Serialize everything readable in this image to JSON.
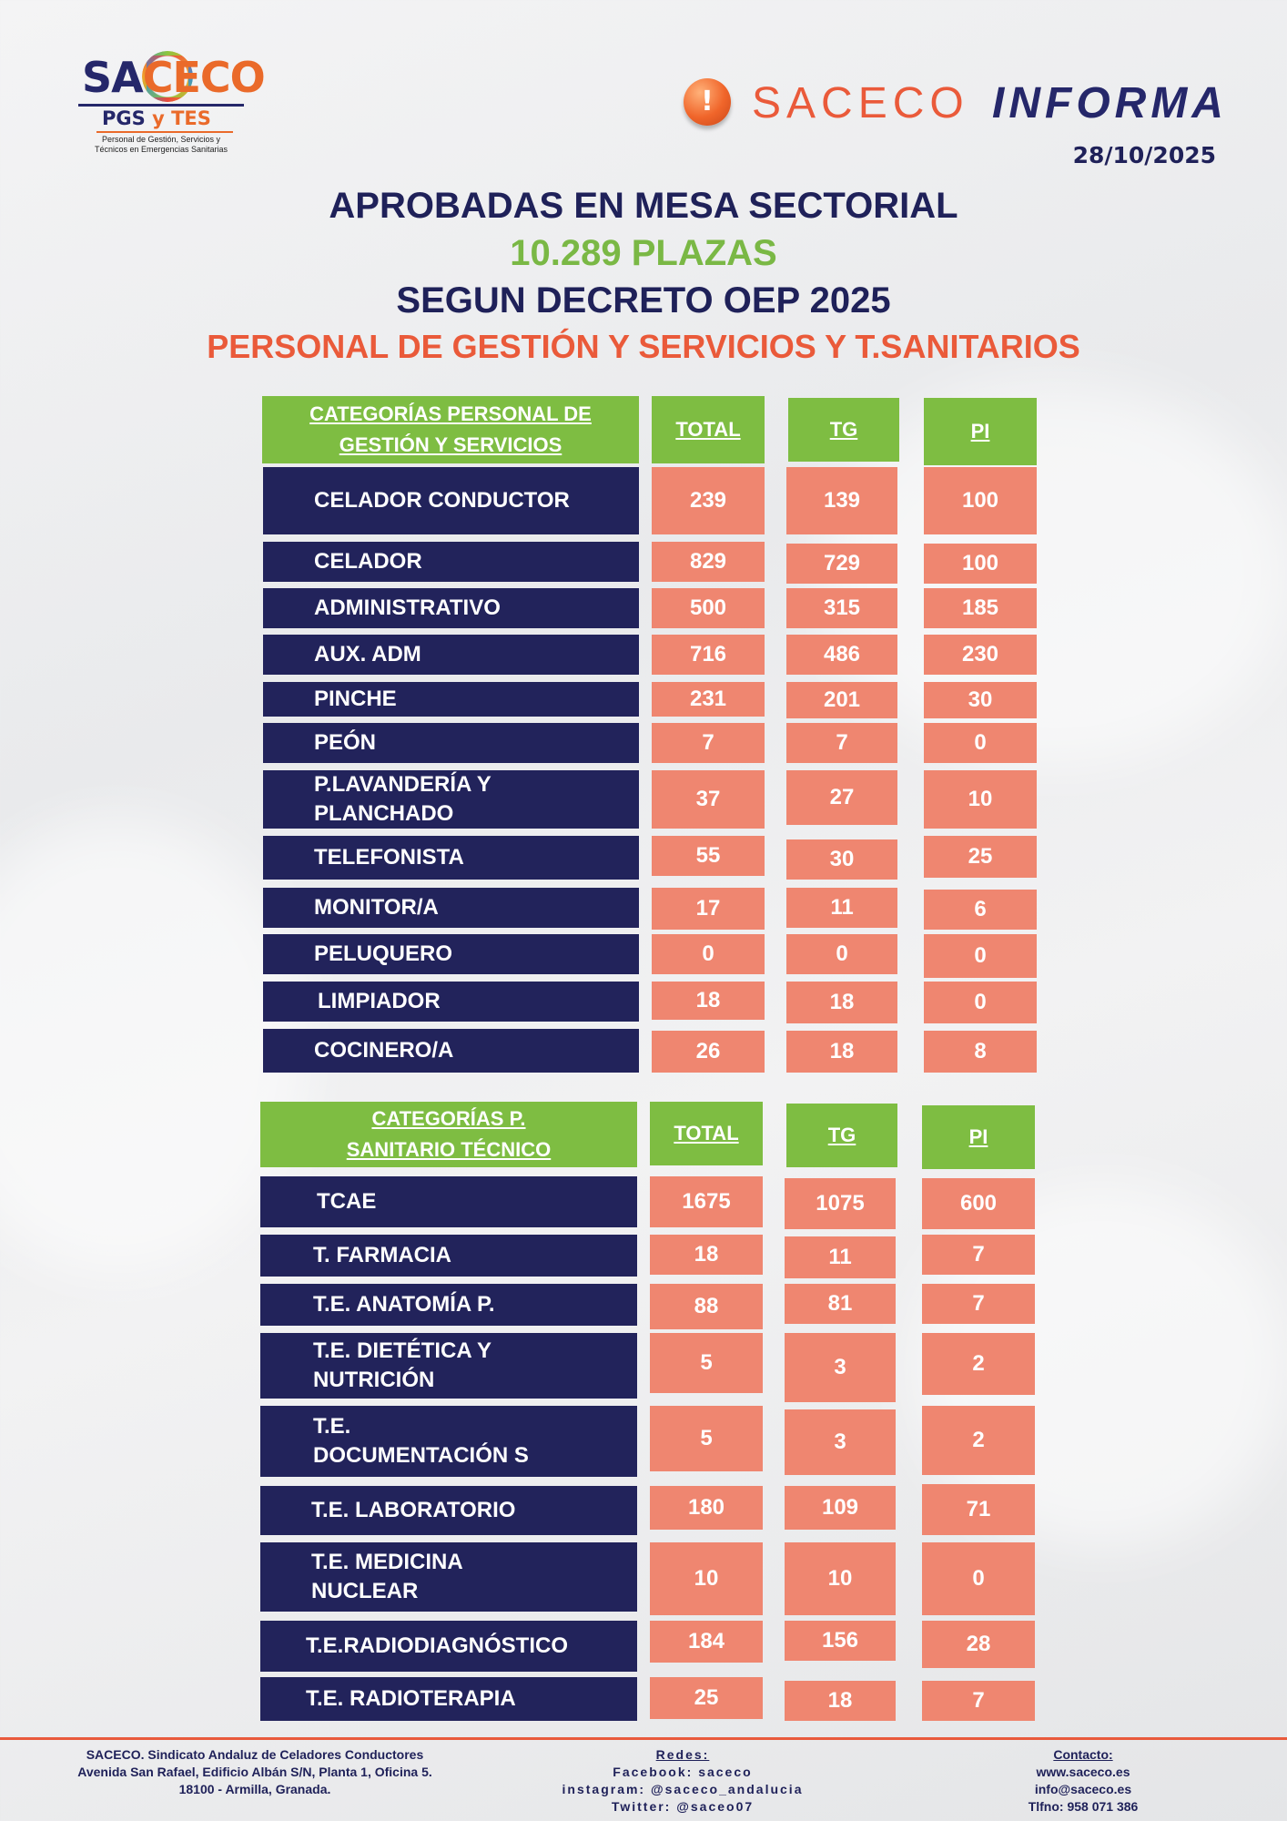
{
  "logo": {
    "main_a": "SA",
    "main_b": "CECO",
    "sub_a": "PGS",
    "sub_b": "y TES",
    "caption_1": "Personal de Gestión, Servicios y",
    "caption_2": "Técnicos en Emergencias Sanitarias"
  },
  "header": {
    "alert_symbol": "!",
    "brand": "SACECO",
    "brand_b": "INFORMA",
    "date": "28/10/2025"
  },
  "titles": {
    "line1": "APROBADAS EN MESA SECTORIAL",
    "line2": "10.289 PLAZAS",
    "line3": "SEGUN DECRETO OEP 2025",
    "line4": "PERSONAL DE GESTIÓN Y SERVICIOS Y T.SANITARIOS"
  },
  "table1": {
    "header": {
      "category_line1": "CATEGORÍAS PERSONAL DE",
      "category_line2": "GESTIÓN Y SERVICIOS",
      "total": "TOTAL",
      "tg": "TG",
      "pi": "PI"
    },
    "rows": [
      {
        "name1": "CELADOR CONDUCTOR",
        "name2": "",
        "total": "239",
        "tg": "139",
        "pi": "100"
      },
      {
        "name1": "CELADOR",
        "name2": "",
        "total": "829",
        "tg": "729",
        "pi": "100"
      },
      {
        "name1": "ADMINISTRATIVO",
        "name2": "",
        "total": "500",
        "tg": "315",
        "pi": "185"
      },
      {
        "name1": "AUX. ADM",
        "name2": "",
        "total": "716",
        "tg": "486",
        "pi": "230"
      },
      {
        "name1": "PINCHE",
        "name2": "",
        "total": "231",
        "tg": "201",
        "pi": "30"
      },
      {
        "name1": "PEÓN",
        "name2": "",
        "total": "7",
        "tg": "7",
        "pi": "0"
      },
      {
        "name1": "P.LAVANDERÍA Y",
        "name2": "PLANCHADO",
        "total": "37",
        "tg": "27",
        "pi": "10"
      },
      {
        "name1": "TELEFONISTA",
        "name2": "",
        "total": "55",
        "tg": "30",
        "pi": "25"
      },
      {
        "name1": "MONITOR/A",
        "name2": "",
        "total": "17",
        "tg": "11",
        "pi": "6"
      },
      {
        "name1": "PELUQUERO",
        "name2": "",
        "total": "0",
        "tg": "0",
        "pi": "0"
      },
      {
        "name1": "LIMPIADOR",
        "name2": "",
        "total": "18",
        "tg": "18",
        "pi": "0"
      },
      {
        "name1": "COCINERO/A",
        "name2": "",
        "total": "26",
        "tg": "18",
        "pi": "8"
      }
    ]
  },
  "table2": {
    "header": {
      "category_line1": "CATEGORÍAS P.",
      "category_line2": "SANITARIO TÉCNICO",
      "total": "TOTAL",
      "tg": "TG",
      "pi": "PI"
    },
    "rows": [
      {
        "name1": "TCAE",
        "name2": "",
        "total": "1675",
        "tg": "1075",
        "pi": "600"
      },
      {
        "name1": "T. FARMACIA",
        "name2": "",
        "total": "18",
        "tg": "11",
        "pi": "7"
      },
      {
        "name1": "T.E. ANATOMÍA P.",
        "name2": "",
        "total": "88",
        "tg": "81",
        "pi": "7"
      },
      {
        "name1": "T.E. DIETÉTICA Y",
        "name2": "NUTRICIÓN",
        "total": "5",
        "tg": "3",
        "pi": "2"
      },
      {
        "name1": "T.E.",
        "name2": "DOCUMENTACIÓN S",
        "total": "5",
        "tg": "3",
        "pi": "2"
      },
      {
        "name1": "T.E. LABORATORIO",
        "name2": "",
        "total": "180",
        "tg": "109",
        "pi": "71"
      },
      {
        "name1": "T.E. MEDICINA",
        "name2": "NUCLEAR",
        "total": "10",
        "tg": "10",
        "pi": "0"
      },
      {
        "name1": "T.E.RADIODIAGNÓSTICO",
        "name2": "",
        "total": "184",
        "tg": "156",
        "pi": "28"
      },
      {
        "name1": "T.E. RADIOTERAPIA",
        "name2": "",
        "total": "25",
        "tg": "18",
        "pi": "7"
      }
    ]
  },
  "footer": {
    "left_1": "SACECO. Sindicato Andaluz de Celadores Conductores",
    "left_2": "Avenida San Rafael, Edificio Albán S/N, Planta 1, Oficina 5.",
    "left_3": "18100 - Armilla, Granada.",
    "mid_h": "Redes:",
    "mid_1": "Facebook: saceco",
    "mid_2": "instagram: @saceco_andalucia",
    "mid_3": "Twitter: @saceo07",
    "right_h": "Contacto:",
    "right_1": "www.saceco.es",
    "right_2": "info@saceco.es",
    "right_3": "Tlfno: 958 071 386"
  },
  "colors": {
    "navy": "#22235b",
    "green": "#7ebd42",
    "salmon": "#ef8670",
    "orange": "#ea5a3a"
  }
}
